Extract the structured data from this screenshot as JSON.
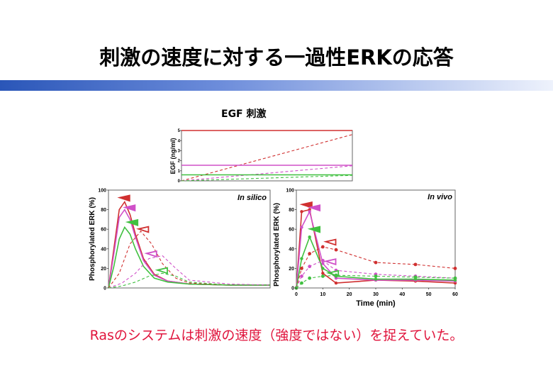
{
  "slide": {
    "title": "刺激の速度に対する一過性ERKの応答",
    "egf_caption": "EGF 刺激",
    "footer": "Rasのシステムは刺激の速度（強度ではない）を捉えていた。",
    "accent_bar_colors": [
      "#2a56b8",
      "#eef2fc"
    ]
  },
  "chart_data": [
    {
      "type": "line",
      "ylabel": "EGF (ng/ml)",
      "ylim": [
        0,
        5
      ],
      "yticks": [
        "0",
        "1",
        "2",
        "3",
        "4",
        "5"
      ],
      "series": [
        {
          "color": "#d03030",
          "style": "solid",
          "x": [
            0,
            1
          ],
          "y": [
            5.0,
            5.0
          ]
        },
        {
          "color": "#d03030",
          "style": "dashed",
          "x": [
            0,
            1
          ],
          "y": [
            0.0,
            4.6
          ]
        },
        {
          "color": "#d050c8",
          "style": "solid",
          "x": [
            0,
            1
          ],
          "y": [
            1.55,
            1.55
          ]
        },
        {
          "color": "#d050c8",
          "style": "dashed",
          "x": [
            0,
            1
          ],
          "y": [
            0.0,
            1.5
          ]
        },
        {
          "color": "#40c040",
          "style": "solid",
          "x": [
            0,
            1
          ],
          "y": [
            0.6,
            0.6
          ]
        },
        {
          "color": "#40c040",
          "style": "dashed",
          "x": [
            0,
            1
          ],
          "y": [
            0.0,
            0.55
          ]
        }
      ]
    },
    {
      "type": "line",
      "annotation": "In silico",
      "ylabel": "Phosphorylated ERK (%)",
      "ylim": [
        0,
        100
      ],
      "yticks": [
        "0",
        "20",
        "40",
        "60",
        "80",
        "100"
      ],
      "series": [
        {
          "color": "#d03030",
          "style": "solid",
          "x": [
            0,
            2,
            4,
            6,
            8,
            10,
            13,
            17,
            22,
            30,
            45,
            60
          ],
          "y": [
            0,
            40,
            80,
            88,
            75,
            55,
            30,
            14,
            7,
            4,
            3,
            3
          ]
        },
        {
          "color": "#d050c8",
          "style": "solid",
          "x": [
            0,
            2,
            4,
            6,
            8,
            10,
            13,
            17,
            22,
            30,
            45,
            60
          ],
          "y": [
            0,
            35,
            72,
            80,
            70,
            52,
            28,
            13,
            7,
            4,
            3,
            3
          ]
        },
        {
          "color": "#40c040",
          "style": "solid",
          "x": [
            0,
            2,
            4,
            6,
            8,
            10,
            13,
            17,
            22,
            30,
            45,
            60
          ],
          "y": [
            0,
            22,
            50,
            62,
            55,
            40,
            22,
            10,
            6,
            4,
            3,
            3
          ]
        },
        {
          "color": "#d03030",
          "style": "dashed",
          "x": [
            0,
            4,
            8,
            12,
            16,
            20,
            25,
            30,
            45,
            60
          ],
          "y": [
            0,
            15,
            45,
            58,
            45,
            25,
            10,
            5,
            3,
            3
          ]
        },
        {
          "color": "#d050c8",
          "style": "dashed",
          "x": [
            0,
            5,
            10,
            15,
            20,
            25,
            30,
            45,
            60
          ],
          "y": [
            0,
            5,
            15,
            30,
            33,
            20,
            8,
            4,
            3
          ]
        },
        {
          "color": "#40c040",
          "style": "dashed",
          "x": [
            0,
            5,
            10,
            15,
            20,
            25,
            30,
            45,
            60
          ],
          "y": [
            0,
            2,
            6,
            12,
            15,
            12,
            6,
            3,
            3
          ]
        }
      ],
      "markers": [
        {
          "color": "#d03030",
          "shape": "filled-triangle",
          "x": 6,
          "y": 90
        },
        {
          "color": "#d050c8",
          "shape": "filled-triangle",
          "x": 8,
          "y": 80
        },
        {
          "color": "#40c040",
          "shape": "filled-triangle",
          "x": 9,
          "y": 65
        },
        {
          "color": "#d03030",
          "shape": "open-triangle",
          "x": 13,
          "y": 58
        },
        {
          "color": "#d050c8",
          "shape": "open-triangle",
          "x": 16,
          "y": 33
        },
        {
          "color": "#40c040",
          "shape": "open-triangle",
          "x": 20,
          "y": 16
        }
      ]
    },
    {
      "type": "line",
      "annotation": "In vivo",
      "xlabel": "Time (min)",
      "ylabel": "Phosphorylated ERK (%)",
      "ylim": [
        0,
        100
      ],
      "xlim": [
        0,
        60
      ],
      "yticks": [
        "0",
        "20",
        "40",
        "60",
        "80",
        "100"
      ],
      "xticks": [
        "0",
        "10",
        "20",
        "30",
        "40",
        "50",
        "60"
      ],
      "series": [
        {
          "color": "#d03030",
          "style": "solid",
          "x": [
            0,
            2,
            5,
            10,
            15,
            30,
            45,
            60
          ],
          "y": [
            0,
            78,
            80,
            15,
            5,
            8,
            7,
            5
          ]
        },
        {
          "color": "#d050c8",
          "style": "solid",
          "x": [
            0,
            2,
            5,
            10,
            15,
            30,
            45,
            60
          ],
          "y": [
            0,
            62,
            78,
            25,
            10,
            8,
            8,
            7
          ]
        },
        {
          "color": "#40c040",
          "style": "solid",
          "x": [
            0,
            2,
            5,
            10,
            15,
            30,
            45,
            60
          ],
          "y": [
            0,
            30,
            52,
            20,
            12,
            9,
            9,
            8
          ]
        },
        {
          "color": "#d03030",
          "style": "dashed",
          "x": [
            0,
            2,
            5,
            10,
            15,
            30,
            45,
            60
          ],
          "y": [
            0,
            20,
            35,
            42,
            39,
            26,
            24,
            20
          ]
        },
        {
          "color": "#d050c8",
          "style": "dashed",
          "x": [
            0,
            2,
            5,
            10,
            15,
            30,
            45,
            60
          ],
          "y": [
            0,
            12,
            22,
            28,
            18,
            14,
            12,
            10
          ]
        },
        {
          "color": "#40c040",
          "style": "dashed",
          "x": [
            0,
            2,
            5,
            10,
            15,
            30,
            45,
            60
          ],
          "y": [
            0,
            5,
            10,
            12,
            13,
            12,
            11,
            10
          ]
        }
      ],
      "markers": [
        {
          "color": "#d03030",
          "shape": "filled-triangle",
          "x": 4,
          "y": 83
        },
        {
          "color": "#d050c8",
          "shape": "filled-triangle",
          "x": 7,
          "y": 80
        },
        {
          "color": "#40c040",
          "shape": "filled-triangle",
          "x": 7,
          "y": 58
        },
        {
          "color": "#d03030",
          "shape": "open-triangle",
          "x": 13,
          "y": 45
        },
        {
          "color": "#d050c8",
          "shape": "open-triangle",
          "x": 13,
          "y": 25
        },
        {
          "color": "#40c040",
          "shape": "open-triangle",
          "x": 14,
          "y": 13
        }
      ]
    }
  ]
}
